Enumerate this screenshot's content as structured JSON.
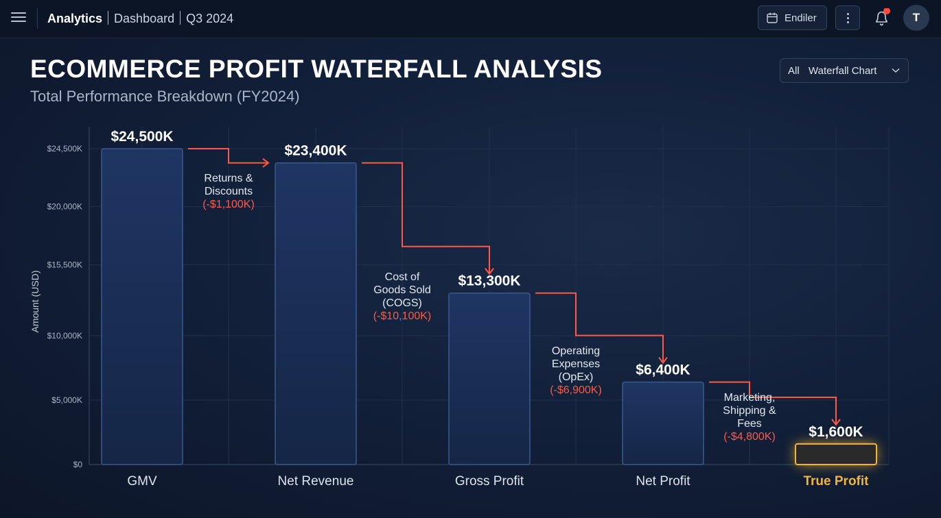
{
  "header": {
    "app_name": "Analytics",
    "section": "Dashboard",
    "period": "Q3 2024",
    "date_button_label": "Endiler",
    "avatar_initial": "T",
    "icons": [
      "menu-icon",
      "calendar-icon",
      "more-vertical-icon",
      "bell-icon"
    ],
    "notification_dot_color": "#ff4b3e"
  },
  "filter": {
    "scope": "All",
    "view": "Waterfall Chart"
  },
  "chart_data": {
    "type": "bar",
    "subtype": "waterfall",
    "title": "ECOMMERCE PROFIT WATERFALL ANALYSIS",
    "subtitle": "Total Performance Breakdown (FY2024)",
    "ylabel": "Amount (USD)",
    "xlabel": "",
    "ylim": [
      0,
      24500
    ],
    "yticks": [
      {
        "value": 0,
        "label": "$0"
      },
      {
        "value": 5000,
        "label": "$5,000K"
      },
      {
        "value": 10000,
        "label": "$10,000K"
      },
      {
        "value": 15500,
        "label": "$15,500K"
      },
      {
        "value": 20000,
        "label": "$20,000K"
      },
      {
        "value": 24500,
        "label": "$24,500K"
      }
    ],
    "categories": [
      "GMV",
      "Net Revenue",
      "Gross Profit",
      "Net Profit",
      "True Profit"
    ],
    "values": [
      24500,
      23400,
      13300,
      6400,
      1600
    ],
    "value_labels": [
      "$24,500K",
      "$23,400K",
      "$13,300K",
      "$6,400K",
      "$1,600K"
    ],
    "highlight_index": 4,
    "steps": [
      {
        "label_lines": [
          "Returns &",
          "Discounts"
        ],
        "value": -1100,
        "value_label": "(-$1,100K)"
      },
      {
        "label_lines": [
          "Cost of",
          "Goods Sold",
          "(COGS)"
        ],
        "value": -10100,
        "value_label": "(-$10,100K)"
      },
      {
        "label_lines": [
          "Operating",
          "Expenses",
          "(OpEx)"
        ],
        "value": -6900,
        "value_label": "(-$6,900K)"
      },
      {
        "label_lines": [
          "Marketing,",
          "Shipping &",
          "Fees"
        ],
        "value": -4800,
        "value_label": "(-$4,800K)"
      }
    ],
    "grid": true,
    "colors": {
      "bar_fill": "#1a2c52",
      "bar_stroke": "#3b5a8c",
      "highlight": "#f2b632",
      "decrease": "#ff5a45",
      "grid": "#22304a"
    }
  }
}
